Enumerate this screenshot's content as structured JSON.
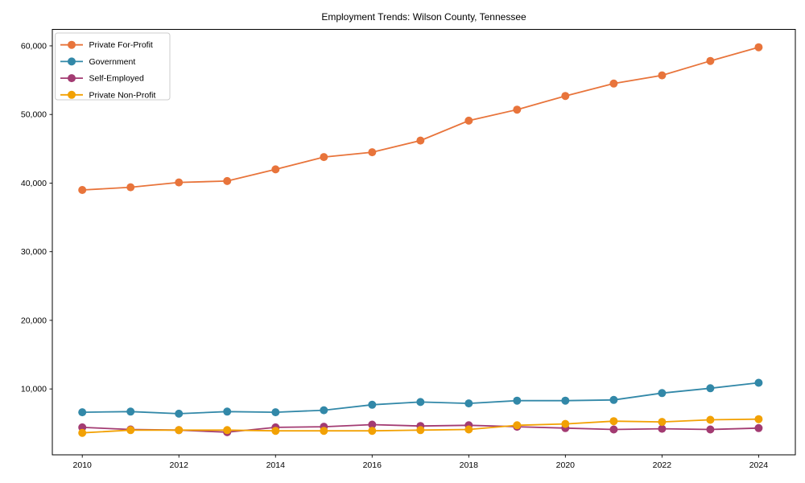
{
  "title": "Employment Trends: Wilson County, Tennessee",
  "chart_data": {
    "type": "line",
    "title": "Employment Trends: Wilson County, Tennessee",
    "x": [
      2010,
      2011,
      2012,
      2013,
      2014,
      2015,
      2016,
      2017,
      2018,
      2019,
      2020,
      2021,
      2022,
      2023,
      2024
    ],
    "series": [
      {
        "name": "Private For-Profit",
        "color": "#E8743B",
        "values": [
          39000,
          39400,
          40100,
          40300,
          42000,
          43800,
          44500,
          46200,
          49100,
          50700,
          52700,
          54500,
          55700,
          57800,
          59800
        ]
      },
      {
        "name": "Government",
        "color": "#3288A8",
        "values": [
          6600,
          6700,
          6400,
          6700,
          6600,
          6900,
          7700,
          8100,
          7900,
          8300,
          8300,
          8400,
          9400,
          10100,
          10900
        ]
      },
      {
        "name": "Self-Employed",
        "color": "#A33B72",
        "values": [
          4400,
          4100,
          4000,
          3700,
          4400,
          4500,
          4800,
          4600,
          4700,
          4500,
          4300,
          4100,
          4200,
          4100,
          4300
        ]
      },
      {
        "name": "Private Non-Profit",
        "color": "#F2A104",
        "values": [
          3600,
          4000,
          4000,
          4000,
          3900,
          3900,
          3900,
          4000,
          4100,
          4700,
          4900,
          5300,
          5200,
          5500,
          5600
        ]
      }
    ],
    "xticks": [
      2010,
      2012,
      2014,
      2016,
      2018,
      2020,
      2022,
      2024
    ],
    "yticks": [
      10000,
      20000,
      30000,
      40000,
      50000,
      60000
    ],
    "ytick_labels": [
      "10,000",
      "20,000",
      "30,000",
      "40,000",
      "50,000",
      "60,000"
    ],
    "xlim": [
      2009.38,
      2024.76
    ],
    "ylim": [
      400,
      62400
    ],
    "grid": false,
    "legend_position": "upper-left",
    "axis_color": "#000000",
    "background_color": "#ffffff"
  }
}
